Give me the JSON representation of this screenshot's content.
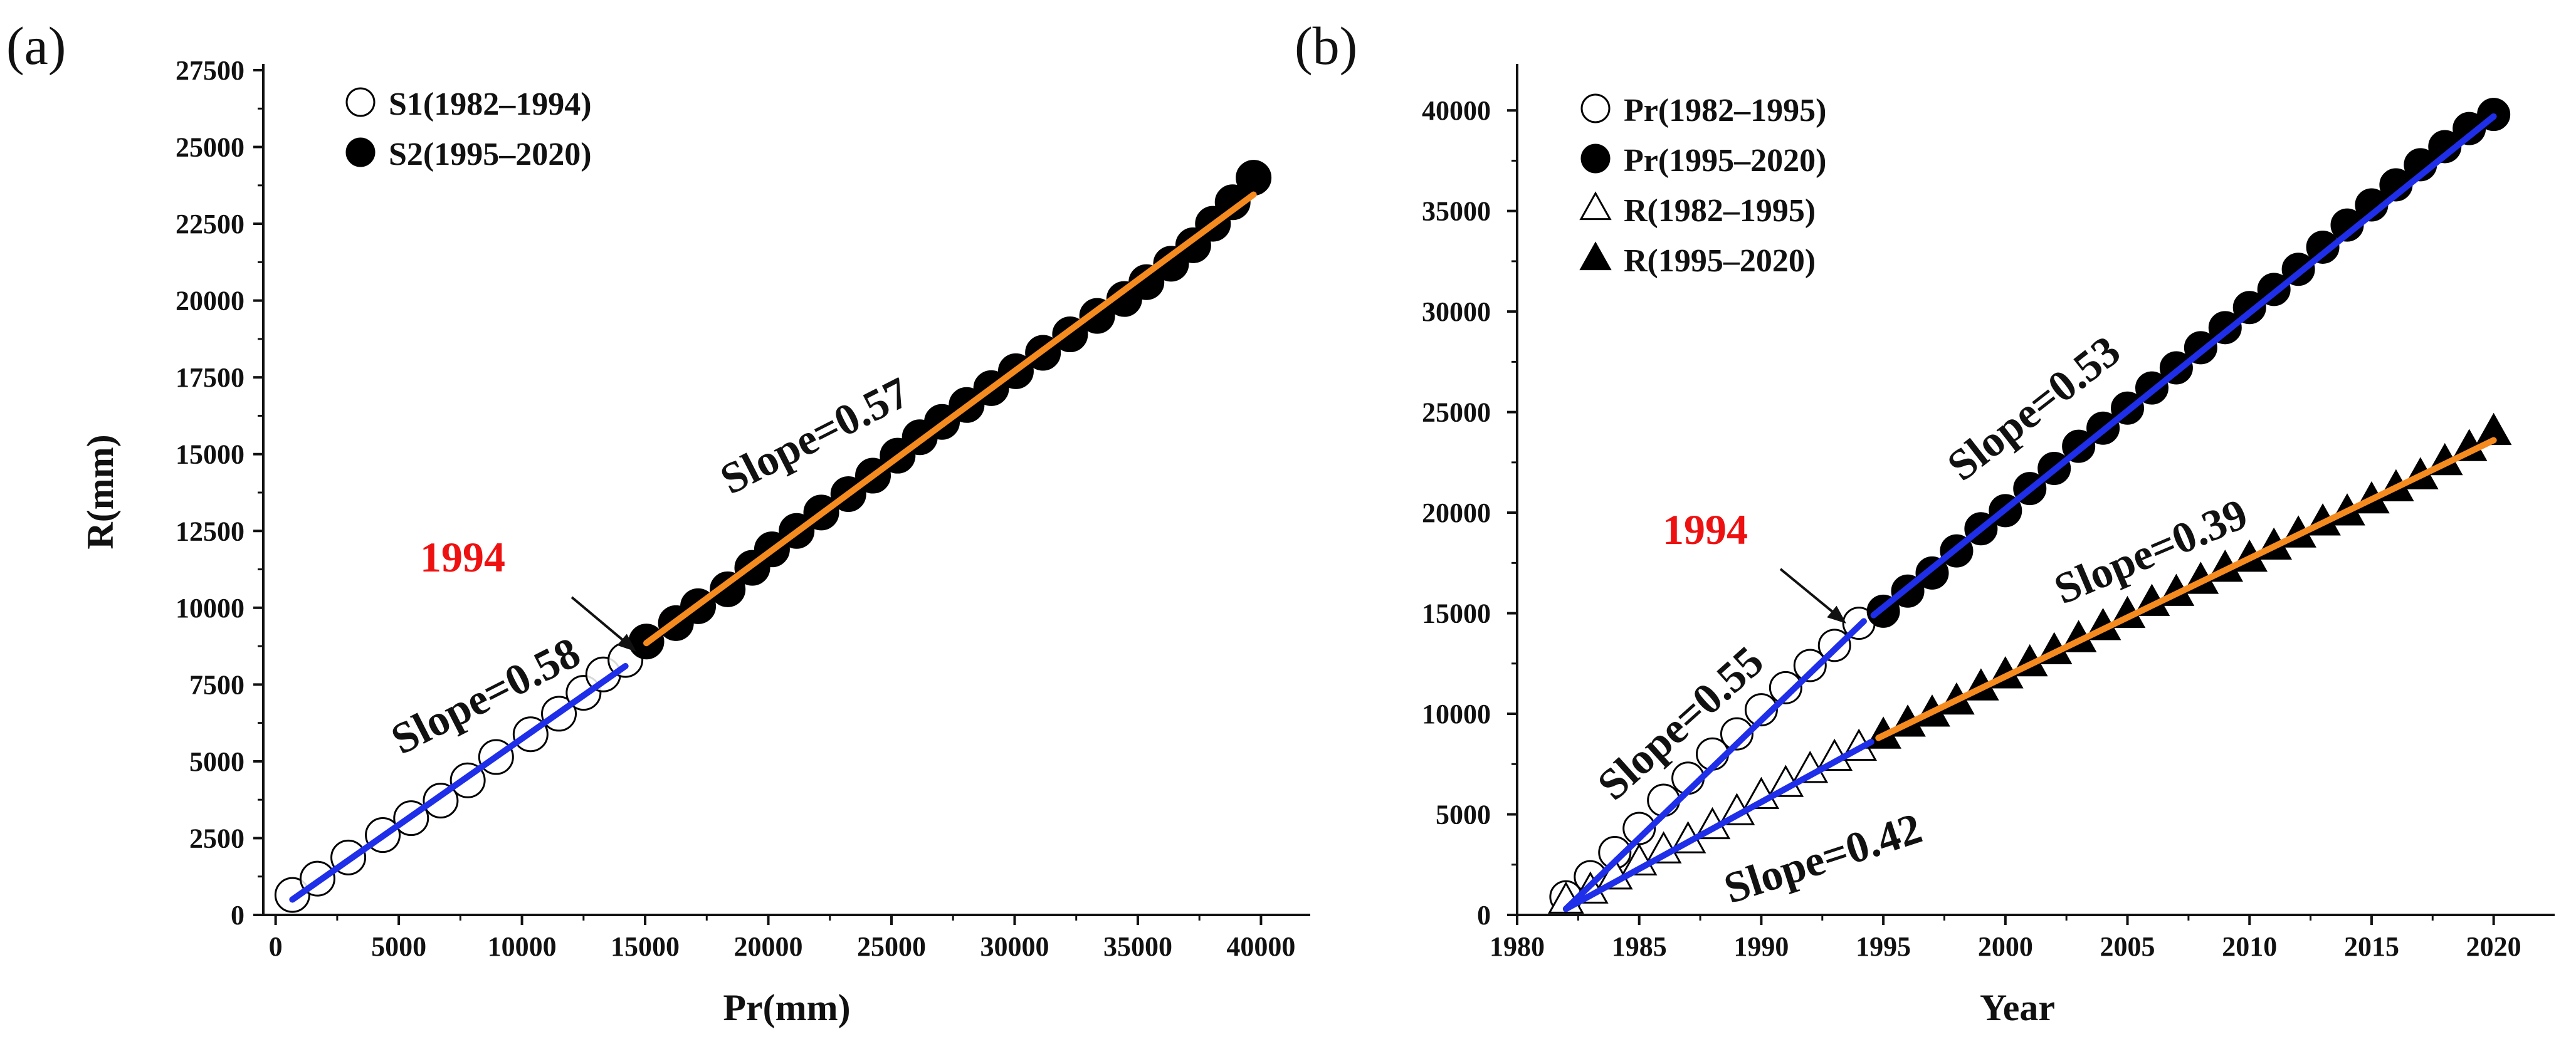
{
  "colors": {
    "fit_s1": "#1f2ee8",
    "fit_s2": "#f58a1f",
    "highlight": "#ee1111",
    "marker": "#000000"
  },
  "chart_data": [
    {
      "type": "scatter",
      "panel_label": "(a)",
      "xlabel": "Pr(mm)",
      "ylabel": "R(mm)",
      "xlim": [
        -500,
        42000
      ],
      "ylim": [
        0,
        27500
      ],
      "xticks": [
        0,
        5000,
        10000,
        15000,
        20000,
        25000,
        30000,
        35000,
        40000
      ],
      "yticks": [
        0,
        2500,
        5000,
        7500,
        10000,
        12500,
        15000,
        17500,
        20000,
        22500,
        25000,
        27500
      ],
      "series": [
        {
          "name": "S1(1982–1994)",
          "marker": "circle-open",
          "x": [
            680,
            1700,
            2950,
            4350,
            5500,
            6700,
            7800,
            8950,
            10350,
            11500,
            12500,
            13300,
            14200
          ],
          "y": [
            650,
            1180,
            1870,
            2600,
            3150,
            3720,
            4380,
            5140,
            5880,
            6550,
            7230,
            7830,
            8300
          ]
        },
        {
          "name": "S2(1995–2020)",
          "marker": "circle-filled",
          "x": [
            15050,
            16250,
            17150,
            18350,
            19350,
            20150,
            21150,
            22150,
            23250,
            24250,
            25250,
            26150,
            27050,
            28050,
            29050,
            30050,
            31150,
            32250,
            33350,
            34450,
            35350,
            36350,
            37250,
            38050,
            38850,
            39700
          ],
          "y": [
            8900,
            9500,
            10050,
            10600,
            11300,
            11900,
            12500,
            13100,
            13700,
            14300,
            14950,
            15550,
            16050,
            16600,
            17150,
            17700,
            18300,
            18900,
            19500,
            20050,
            20600,
            21200,
            21800,
            22500,
            23200,
            24000
          ]
        }
      ],
      "fits": [
        {
          "name": "S1 fit",
          "x": [
            680,
            14200
          ],
          "y": [
            500,
            8100
          ]
        },
        {
          "name": "S2 fit",
          "x": [
            15050,
            39700
          ],
          "y": [
            8850,
            23450
          ]
        }
      ],
      "annotations": [
        {
          "text": "Slope=0.58",
          "angle": -27
        },
        {
          "text": "Slope=0.57",
          "angle": -27
        },
        {
          "text": "1994"
        }
      ]
    },
    {
      "type": "scatter",
      "panel_label": "(b)",
      "xlabel": "Year",
      "ylabel": "",
      "xlim": [
        1980,
        2022.5
      ],
      "ylim": [
        0,
        42000
      ],
      "xticks": [
        1980,
        1985,
        1990,
        1995,
        2000,
        2005,
        2010,
        2015,
        2020
      ],
      "yticks": [
        0,
        5000,
        10000,
        15000,
        20000,
        25000,
        30000,
        35000,
        40000
      ],
      "series": [
        {
          "name": "Pr(1982–1995)",
          "marker": "circle-open",
          "x": [
            1982,
            1983,
            1984,
            1985,
            1986,
            1987,
            1988,
            1989,
            1990,
            1991,
            1992,
            1993,
            1994
          ],
          "y": [
            900,
            1900,
            3100,
            4300,
            5700,
            6800,
            8000,
            9000,
            10200,
            11300,
            12400,
            13400,
            14500
          ]
        },
        {
          "name": "Pr(1995–2020)",
          "marker": "circle-filled",
          "x": [
            1995,
            1996,
            1997,
            1998,
            1999,
            2000,
            2001,
            2002,
            2003,
            2004,
            2005,
            2006,
            2007,
            2008,
            2009,
            2010,
            2011,
            2012,
            2013,
            2014,
            2015,
            2016,
            2017,
            2018,
            2019,
            2020
          ],
          "y": [
            15100,
            16100,
            17000,
            18100,
            19200,
            20100,
            21200,
            22200,
            23300,
            24200,
            25200,
            26200,
            27200,
            28200,
            29200,
            30200,
            31100,
            32100,
            33200,
            34300,
            35300,
            36300,
            37300,
            38200,
            39100,
            39800
          ]
        },
        {
          "name": "R(1982–1995)",
          "marker": "triangle-open",
          "x": [
            1982,
            1983,
            1984,
            1985,
            1986,
            1987,
            1988,
            1989,
            1990,
            1991,
            1992,
            1993,
            1994
          ],
          "y": [
            700,
            1200,
            1900,
            2600,
            3200,
            3700,
            4400,
            5100,
            5900,
            6500,
            7200,
            7800,
            8300
          ]
        },
        {
          "name": "R(1995–2020)",
          "marker": "triangle-filled",
          "x": [
            1995,
            1996,
            1997,
            1998,
            1999,
            2000,
            2001,
            2002,
            2003,
            2004,
            2005,
            2006,
            2007,
            2008,
            2009,
            2010,
            2011,
            2012,
            2013,
            2014,
            2015,
            2016,
            2017,
            2018,
            2019,
            2020
          ],
          "y": [
            8900,
            9500,
            10000,
            10600,
            11300,
            11900,
            12500,
            13100,
            13700,
            14300,
            14900,
            15500,
            16000,
            16600,
            17200,
            17700,
            18300,
            18900,
            19500,
            20000,
            20600,
            21200,
            21800,
            22500,
            23200,
            24000
          ]
        }
      ],
      "fits": [
        {
          "name": "Pr(1982–1995) fit",
          "x": [
            1982,
            1994.2
          ],
          "y": [
            300,
            14600
          ]
        },
        {
          "name": "Pr(1995–2020) fit",
          "x": [
            1994.6,
            2020
          ],
          "y": [
            14900,
            39700
          ]
        },
        {
          "name": "R(1982–1995) fit",
          "x": [
            1982,
            1994.5
          ],
          "y": [
            300,
            8600
          ]
        },
        {
          "name": "R(1995–2020) fit",
          "x": [
            1994.8,
            2020
          ],
          "y": [
            8800,
            23600
          ]
        }
      ],
      "annotations": [
        {
          "text": "Slope=0.55",
          "angle": -42
        },
        {
          "text": "Slope=0.42",
          "angle": -18
        },
        {
          "text": "Slope=0.53",
          "angle": -38
        },
        {
          "text": "Slope=0.39",
          "angle": -23
        },
        {
          "text": "1994"
        }
      ]
    }
  ]
}
